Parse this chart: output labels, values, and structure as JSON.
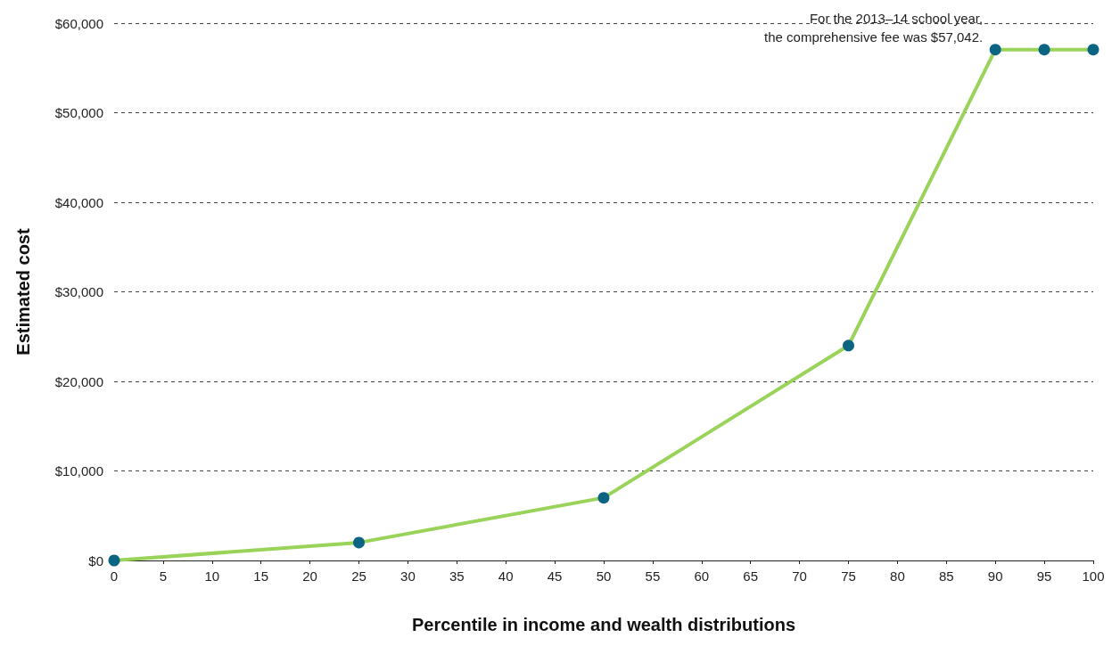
{
  "chart_data": {
    "type": "line",
    "xlabel": "Percentile in income and wealth distributions",
    "ylabel": "Estimated cost",
    "x": [
      0,
      25,
      50,
      75,
      90,
      95,
      100
    ],
    "series": [
      {
        "color": "#9ad35a",
        "values": [
          0,
          2000,
          7000,
          24000,
          57042,
          57042,
          57042
        ]
      }
    ],
    "xlim": [
      0,
      100
    ],
    "xticks": [
      0,
      5,
      10,
      15,
      20,
      25,
      30,
      35,
      40,
      45,
      50,
      55,
      60,
      65,
      70,
      75,
      80,
      85,
      90,
      95,
      100
    ],
    "ylim": [
      0,
      60000
    ],
    "yticks": [
      {
        "value": 0,
        "label": "$0"
      },
      {
        "value": 10000,
        "label": "$10,000"
      },
      {
        "value": 20000,
        "label": "$20,000"
      },
      {
        "value": 30000,
        "label": "$30,000"
      },
      {
        "value": 40000,
        "label": "$40,000"
      },
      {
        "value": 50000,
        "label": "$50,000"
      },
      {
        "value": 60000,
        "label": "$60,000"
      }
    ],
    "grid": "y",
    "marker": "circle",
    "line_style": "solid",
    "annotations": [
      {
        "text": "For the 2013–14 school year,\nthe comprehensive fee was $57,042.",
        "x": 90,
        "y": 57042
      }
    ]
  }
}
